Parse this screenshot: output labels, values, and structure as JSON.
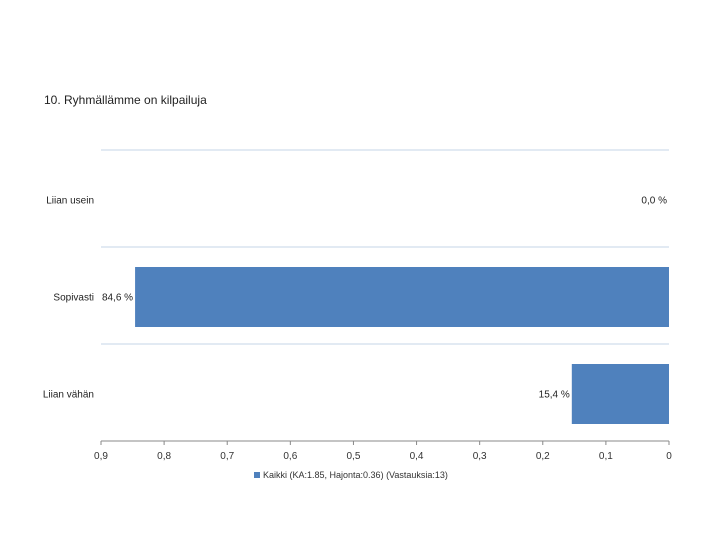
{
  "title": "10. Ryhmällämme on kilpailuja",
  "chart_data": {
    "type": "bar",
    "orientation": "horizontal",
    "x_axis_reversed": true,
    "categories": [
      "Liian usein",
      "Sopivasti",
      "Liian vähän"
    ],
    "series": [
      {
        "name": "Kaikki (KA:1.85, Hajonta:0.36) (Vastauksia:13)",
        "values": [
          0.0,
          0.846,
          0.154
        ],
        "value_labels": [
          "0,0 %",
          "84,6 %",
          "15,4 %"
        ],
        "color": "#4f81bd"
      }
    ],
    "xlim": [
      0,
      0.9
    ],
    "x_ticks": [
      "0,9",
      "0,8",
      "0,7",
      "0,6",
      "0,5",
      "0,4",
      "0,3",
      "0,2",
      "0,1",
      "0"
    ],
    "grid": true,
    "legend_position": "bottom"
  },
  "colors": {
    "bar": "#4f81bd",
    "grid": "#d9e3ef",
    "axis": "#888888"
  }
}
